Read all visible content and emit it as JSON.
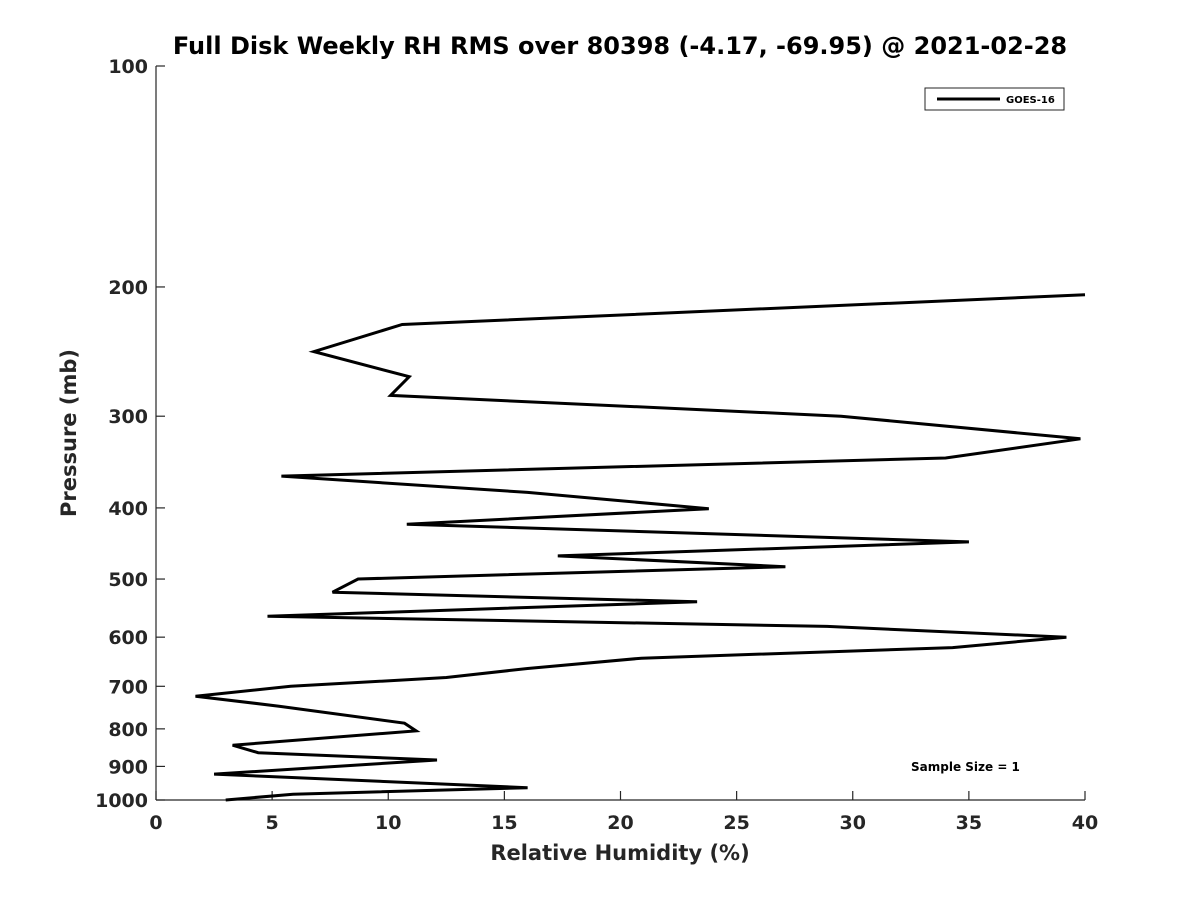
{
  "chart_data": {
    "type": "line",
    "title": "Full Disk Weekly RH RMS over 80398 (-4.17, -69.95) @ 2021-02-28",
    "xlabel": "Relative Humidity (%)",
    "ylabel": "Pressure (mb)",
    "xlim": [
      0,
      40
    ],
    "ylim": [
      1000,
      100
    ],
    "y_scale": "log",
    "x_ticks": [
      0,
      5,
      10,
      15,
      20,
      25,
      30,
      35,
      40
    ],
    "y_ticks": [
      100,
      200,
      300,
      400,
      500,
      600,
      700,
      800,
      900,
      1000
    ],
    "grid": false,
    "legend_position": "top-right",
    "series": [
      {
        "name": "GOES-16",
        "color": "#000000",
        "points": [
          {
            "x": 40.0,
            "y": 205
          },
          {
            "x": 10.6,
            "y": 225
          },
          {
            "x": 6.8,
            "y": 245
          },
          {
            "x": 10.9,
            "y": 265
          },
          {
            "x": 10.1,
            "y": 281
          },
          {
            "x": 29.5,
            "y": 300
          },
          {
            "x": 39.8,
            "y": 322
          },
          {
            "x": 34.0,
            "y": 342
          },
          {
            "x": 5.4,
            "y": 362
          },
          {
            "x": 16.0,
            "y": 381
          },
          {
            "x": 23.8,
            "y": 401
          },
          {
            "x": 10.8,
            "y": 421
          },
          {
            "x": 35.0,
            "y": 445
          },
          {
            "x": 17.3,
            "y": 465
          },
          {
            "x": 27.1,
            "y": 481
          },
          {
            "x": 8.7,
            "y": 500
          },
          {
            "x": 7.6,
            "y": 521
          },
          {
            "x": 23.3,
            "y": 537
          },
          {
            "x": 4.8,
            "y": 562
          },
          {
            "x": 28.9,
            "y": 580
          },
          {
            "x": 39.2,
            "y": 600
          },
          {
            "x": 34.3,
            "y": 620
          },
          {
            "x": 20.9,
            "y": 641
          },
          {
            "x": 16.0,
            "y": 662
          },
          {
            "x": 12.5,
            "y": 681
          },
          {
            "x": 5.8,
            "y": 700
          },
          {
            "x": 1.7,
            "y": 722
          },
          {
            "x": 5.3,
            "y": 745
          },
          {
            "x": 10.7,
            "y": 786
          },
          {
            "x": 11.2,
            "y": 805
          },
          {
            "x": 3.3,
            "y": 842
          },
          {
            "x": 4.4,
            "y": 862
          },
          {
            "x": 12.1,
            "y": 882
          },
          {
            "x": 2.5,
            "y": 922
          },
          {
            "x": 16.0,
            "y": 962
          },
          {
            "x": 5.9,
            "y": 982
          },
          {
            "x": 3.0,
            "y": 1000
          }
        ]
      }
    ],
    "annotations": [
      {
        "text": "Sample Size = 1",
        "position": "bottom-right"
      }
    ]
  }
}
